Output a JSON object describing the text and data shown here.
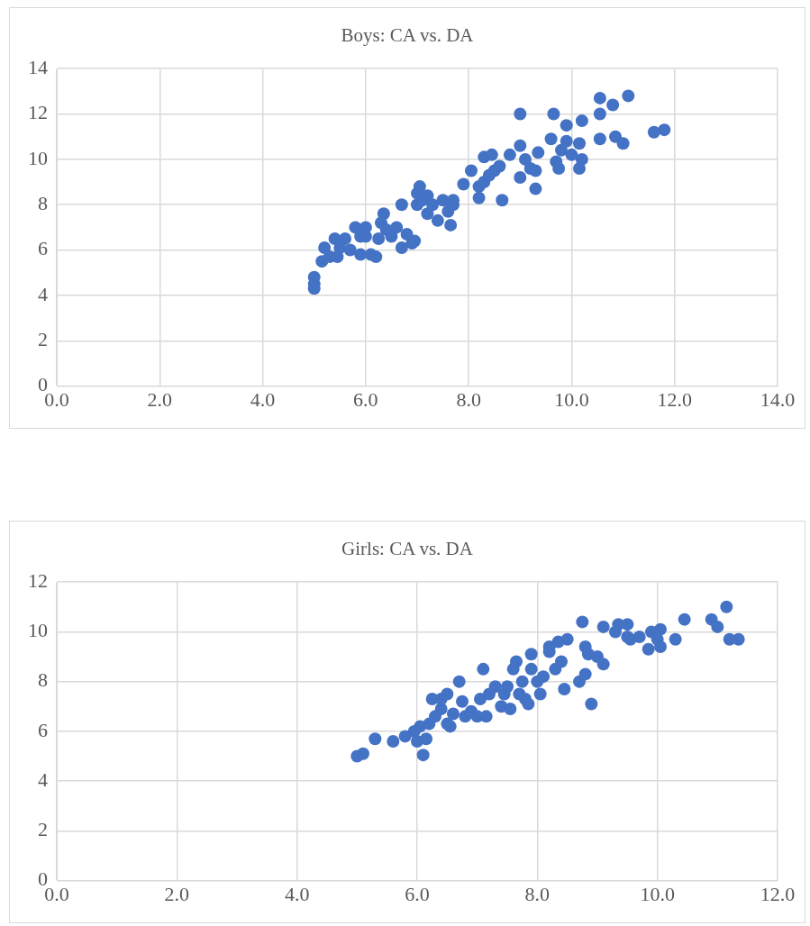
{
  "chart_data": [
    {
      "type": "scatter",
      "title": "Boys: CA vs. DA",
      "marker": "circle",
      "grid": true,
      "legend": false,
      "xlim": [
        0,
        14
      ],
      "xticks": [
        {
          "value": 0,
          "label": "0.0"
        },
        {
          "value": 2,
          "label": "2.0"
        },
        {
          "value": 4,
          "label": "4.0"
        },
        {
          "value": 6,
          "label": "6.0"
        },
        {
          "value": 8,
          "label": "8.0"
        },
        {
          "value": 10,
          "label": "10.0"
        },
        {
          "value": 12,
          "label": "12.0"
        },
        {
          "value": 14,
          "label": "14.0"
        }
      ],
      "ylim": [
        0,
        14
      ],
      "yticks": [
        0,
        2,
        4,
        6,
        8,
        10,
        12,
        14
      ],
      "series": [
        {
          "color": "#4472c4",
          "x": [
            5.0,
            5.0,
            5.0,
            5.15,
            5.2,
            5.3,
            5.4,
            5.45,
            5.5,
            5.6,
            5.7,
            5.8,
            5.9,
            5.9,
            6.0,
            6.0,
            6.1,
            6.2,
            6.25,
            6.3,
            6.35,
            6.4,
            6.5,
            6.6,
            6.7,
            6.7,
            6.8,
            6.9,
            6.95,
            7.0,
            7.0,
            7.05,
            7.1,
            7.2,
            7.2,
            7.3,
            7.4,
            7.5,
            7.6,
            7.65,
            7.7,
            7.7,
            7.9,
            8.05,
            8.2,
            8.2,
            8.3,
            8.3,
            8.4,
            8.45,
            8.5,
            8.6,
            8.65,
            8.8,
            9.0,
            9.0,
            9.0,
            9.1,
            9.2,
            9.3,
            9.3,
            9.35,
            9.6,
            9.65,
            9.7,
            9.75,
            9.8,
            9.9,
            9.9,
            10.0,
            10.15,
            10.15,
            10.2,
            10.2,
            10.55,
            10.55,
            10.55,
            10.8,
            10.85,
            11.0,
            11.1,
            11.6,
            11.8
          ],
          "values": [
            4.3,
            4.5,
            4.8,
            5.5,
            6.1,
            5.7,
            6.5,
            5.7,
            6.1,
            6.5,
            6.0,
            7.0,
            5.8,
            6.6,
            7.0,
            6.6,
            5.8,
            5.7,
            6.5,
            7.2,
            7.6,
            6.9,
            6.6,
            7.0,
            6.1,
            8.0,
            6.7,
            6.3,
            6.4,
            8.0,
            8.5,
            8.8,
            8.2,
            7.6,
            8.4,
            8.0,
            7.3,
            8.2,
            7.7,
            7.1,
            8.0,
            8.2,
            8.9,
            9.5,
            8.3,
            8.8,
            10.1,
            9.0,
            9.3,
            10.2,
            9.5,
            9.7,
            8.2,
            10.2,
            9.2,
            10.6,
            12.0,
            10.0,
            9.6,
            9.5,
            8.7,
            10.3,
            10.9,
            12.0,
            9.9,
            9.6,
            10.4,
            11.5,
            10.8,
            10.2,
            10.7,
            9.6,
            11.7,
            10.0,
            10.9,
            12.0,
            12.7,
            12.4,
            11.0,
            10.7,
            12.8,
            11.2,
            11.3
          ]
        }
      ]
    },
    {
      "type": "scatter",
      "title": "Girls: CA vs. DA",
      "marker": "circle",
      "grid": true,
      "legend": false,
      "xlim": [
        0,
        12
      ],
      "xticks": [
        {
          "value": 0,
          "label": "0.0"
        },
        {
          "value": 2,
          "label": "2.0"
        },
        {
          "value": 4,
          "label": "4.0"
        },
        {
          "value": 6,
          "label": "6.0"
        },
        {
          "value": 8,
          "label": "8.0"
        },
        {
          "value": 10,
          "label": "10.0"
        },
        {
          "value": 12,
          "label": "12.0"
        }
      ],
      "ylim": [
        0,
        12
      ],
      "yticks": [
        0,
        2,
        4,
        6,
        8,
        10,
        12
      ],
      "series": [
        {
          "color": "#4472c4",
          "x": [
            5.0,
            5.1,
            5.3,
            5.6,
            5.8,
            5.95,
            6.0,
            6.05,
            6.1,
            6.15,
            6.2,
            6.25,
            6.3,
            6.4,
            6.4,
            6.5,
            6.5,
            6.55,
            6.6,
            6.7,
            6.75,
            6.8,
            6.9,
            7.0,
            7.05,
            7.1,
            7.15,
            7.2,
            7.3,
            7.4,
            7.45,
            7.5,
            7.55,
            7.6,
            7.65,
            7.7,
            7.75,
            7.8,
            7.85,
            7.9,
            7.9,
            8.0,
            8.05,
            8.1,
            8.2,
            8.2,
            8.3,
            8.35,
            8.4,
            8.45,
            8.5,
            8.7,
            8.75,
            8.8,
            8.8,
            8.85,
            8.9,
            9.0,
            9.1,
            9.1,
            9.3,
            9.35,
            9.5,
            9.5,
            9.55,
            9.7,
            9.85,
            9.9,
            10.0,
            10.05,
            10.05,
            10.3,
            10.45,
            10.9,
            11.0,
            11.15,
            11.2,
            11.35
          ],
          "values": [
            5.0,
            5.1,
            5.7,
            5.6,
            5.8,
            6.0,
            5.6,
            6.2,
            5.05,
            5.7,
            6.3,
            7.3,
            6.6,
            6.9,
            7.3,
            6.3,
            7.5,
            6.2,
            6.7,
            8.0,
            7.2,
            6.6,
            6.8,
            6.6,
            7.3,
            8.5,
            6.6,
            7.5,
            7.8,
            7.0,
            7.5,
            7.8,
            6.9,
            8.5,
            8.8,
            7.5,
            8.0,
            7.3,
            7.1,
            9.1,
            8.5,
            8.0,
            7.5,
            8.2,
            9.2,
            9.4,
            8.5,
            9.6,
            8.8,
            7.7,
            9.7,
            8.0,
            10.4,
            8.3,
            9.4,
            9.1,
            7.1,
            9.0,
            10.2,
            8.7,
            10.0,
            10.3,
            10.3,
            9.8,
            9.7,
            9.8,
            9.3,
            10.0,
            9.7,
            10.1,
            9.4,
            9.7,
            10.5,
            10.5,
            10.2,
            11.0,
            9.7,
            9.7
          ]
        }
      ]
    }
  ]
}
